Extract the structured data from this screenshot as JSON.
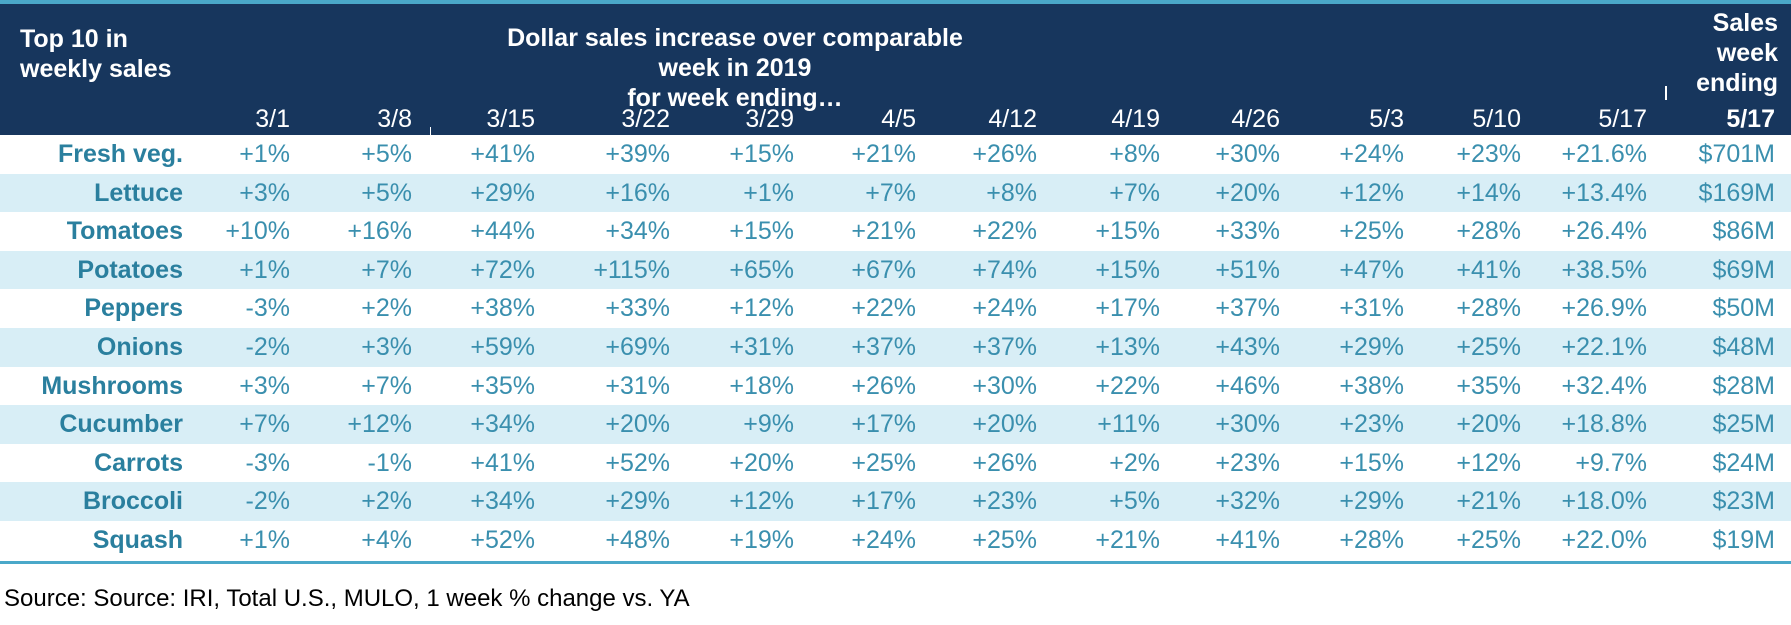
{
  "header": {
    "left_title_line1": "Top 10 in",
    "left_title_line2": "weekly sales",
    "main_title_line1": "Dollar sales increase over comparable week in 2019",
    "main_title_line2": "for week ending…",
    "right_title_line1": "Sales",
    "right_title_line2": "week",
    "right_title_line3": "ending"
  },
  "chart_data": {
    "type": "table",
    "columns": [
      "3/1",
      "3/8",
      "3/15",
      "3/22",
      "3/29",
      "4/5",
      "4/12",
      "4/19",
      "4/26",
      "5/3",
      "5/10",
      "5/17",
      "5/17"
    ],
    "rows": [
      {
        "name": "Fresh veg.",
        "values": [
          "+1%",
          "+5%",
          "+41%",
          "+39%",
          "+15%",
          "+21%",
          "+26%",
          "+8%",
          "+30%",
          "+24%",
          "+23%",
          "+21.6%",
          "$701M"
        ]
      },
      {
        "name": "Lettuce",
        "values": [
          "+3%",
          "+5%",
          "+29%",
          "+16%",
          "+1%",
          "+7%",
          "+8%",
          "+7%",
          "+20%",
          "+12%",
          "+14%",
          "+13.4%",
          "$169M"
        ]
      },
      {
        "name": "Tomatoes",
        "values": [
          "+10%",
          "+16%",
          "+44%",
          "+34%",
          "+15%",
          "+21%",
          "+22%",
          "+15%",
          "+33%",
          "+25%",
          "+28%",
          "+26.4%",
          "$86M"
        ]
      },
      {
        "name": "Potatoes",
        "values": [
          "+1%",
          "+7%",
          "+72%",
          "+115%",
          "+65%",
          "+67%",
          "+74%",
          "+15%",
          "+51%",
          "+47%",
          "+41%",
          "+38.5%",
          "$69M"
        ]
      },
      {
        "name": "Peppers",
        "values": [
          "-3%",
          "+2%",
          "+38%",
          "+33%",
          "+12%",
          "+22%",
          "+24%",
          "+17%",
          "+37%",
          "+31%",
          "+28%",
          "+26.9%",
          "$50M"
        ]
      },
      {
        "name": "Onions",
        "values": [
          "-2%",
          "+3%",
          "+59%",
          "+69%",
          "+31%",
          "+37%",
          "+37%",
          "+13%",
          "+43%",
          "+29%",
          "+25%",
          "+22.1%",
          "$48M"
        ]
      },
      {
        "name": "Mushrooms",
        "values": [
          "+3%",
          "+7%",
          "+35%",
          "+31%",
          "+18%",
          "+26%",
          "+30%",
          "+22%",
          "+46%",
          "+38%",
          "+35%",
          "+32.4%",
          "$28M"
        ]
      },
      {
        "name": "Cucumber",
        "values": [
          "+7%",
          "+12%",
          "+34%",
          "+20%",
          "+9%",
          "+17%",
          "+20%",
          "+11%",
          "+30%",
          "+23%",
          "+20%",
          "+18.8%",
          "$25M"
        ]
      },
      {
        "name": "Carrots",
        "values": [
          "-3%",
          "-1%",
          "+41%",
          "+52%",
          "+20%",
          "+25%",
          "+26%",
          "+2%",
          "+23%",
          "+15%",
          "+12%",
          "+9.7%",
          "$24M"
        ]
      },
      {
        "name": "Broccoli",
        "values": [
          "-2%",
          "+2%",
          "+34%",
          "+29%",
          "+12%",
          "+17%",
          "+23%",
          "+5%",
          "+32%",
          "+29%",
          "+21%",
          "+18.0%",
          "$23M"
        ]
      },
      {
        "name": "Squash",
        "values": [
          "+1%",
          "+4%",
          "+52%",
          "+48%",
          "+19%",
          "+24%",
          "+25%",
          "+21%",
          "+41%",
          "+28%",
          "+25%",
          "+22.0%",
          "$19M"
        ]
      }
    ]
  },
  "source": "Source: Source: IRI, Total U.S., MULO, 1 week % change vs. YA",
  "colors": {
    "header_bg": "#17365d",
    "accent_rule": "#4aa8c9",
    "alt_row_bg": "#d8eef6",
    "value_text": "#3a8fae",
    "name_text": "#2a7f9e"
  }
}
